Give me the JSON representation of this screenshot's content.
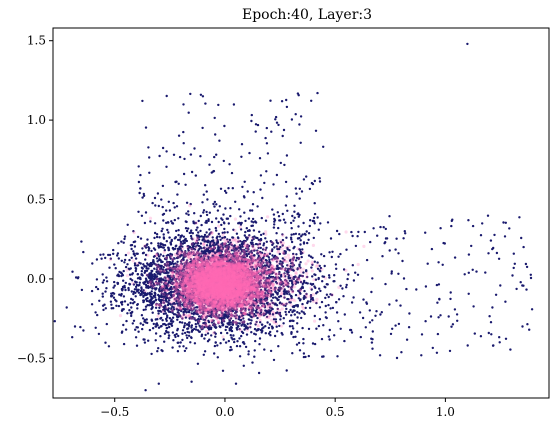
{
  "chart_data": {
    "type": "scatter",
    "title": "Epoch:40, Layer:3",
    "xlabel": "",
    "ylabel": "",
    "xlim": [
      -0.78,
      1.47
    ],
    "ylim": [
      -0.75,
      1.58
    ],
    "x_ticks": [
      -0.5,
      0.0,
      0.5,
      1.0
    ],
    "y_ticks": [
      -0.5,
      0.0,
      0.5,
      1.0,
      1.5
    ],
    "x_tick_labels": [
      "−0.5",
      "0.0",
      "0.5",
      "1.0"
    ],
    "y_tick_labels": [
      "−0.5",
      "0.0",
      "0.5",
      "1.0",
      "1.5"
    ],
    "grid": false,
    "legend": "none",
    "series": [
      {
        "color": "#1a1a6e",
        "marker_size": 1.2,
        "distribution": {
          "core": {
            "count": 4200,
            "mean_x": -0.05,
            "mean_y": -0.03,
            "std_x": 0.2,
            "std_y": 0.16
          },
          "tail_right": {
            "count": 300,
            "x_range": [
              0.3,
              1.4
            ],
            "y_range": [
              -0.5,
              0.4
            ]
          },
          "tail_up": {
            "count": 220,
            "x_range": [
              -0.4,
              0.45
            ],
            "y_range": [
              0.35,
              1.17
            ]
          }
        },
        "notable_points": [
          [
            1.1,
            1.48
          ],
          [
            1.35,
            -0.3
          ],
          [
            1.38,
            -0.32
          ],
          [
            -0.68,
            -0.3
          ],
          [
            -0.1,
            1.15
          ],
          [
            0.42,
            1.17
          ],
          [
            0.05,
            -0.66
          ],
          [
            -0.3,
            -0.66
          ]
        ]
      },
      {
        "color": "#ff69b4",
        "marker_size": 1.6,
        "distribution": {
          "core": {
            "count": 3500,
            "mean_x": -0.02,
            "mean_y": -0.03,
            "std_x": 0.09,
            "std_y": 0.085
          },
          "halo": {
            "count": 900,
            "mean_x": 0.05,
            "mean_y": 0.0,
            "std_x": 0.18,
            "std_y": 0.12
          }
        }
      }
    ]
  }
}
